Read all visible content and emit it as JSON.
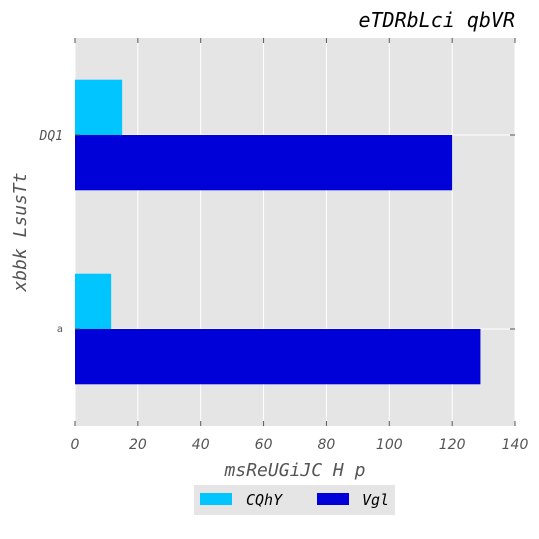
{
  "chart_data": {
    "type": "bar",
    "orientation": "horizontal",
    "title": "eTDRbLci qbVR",
    "xlabel": "msReUGiJC H p",
    "ylabel": "xbbk LsusTt",
    "categories": [
      "a",
      "DQ1"
    ],
    "series": [
      {
        "name": "CQhY",
        "values": [
          11.5,
          15
        ],
        "color": "#00c5ff"
      },
      {
        "name": "Vgl",
        "values": [
          129,
          120
        ],
        "color": "#0000d8"
      }
    ],
    "xlim": [
      0,
      140
    ],
    "xticks": [
      0,
      20,
      40,
      60,
      80,
      100,
      120,
      140
    ],
    "grid": true,
    "legend_position": "bottom-center"
  }
}
